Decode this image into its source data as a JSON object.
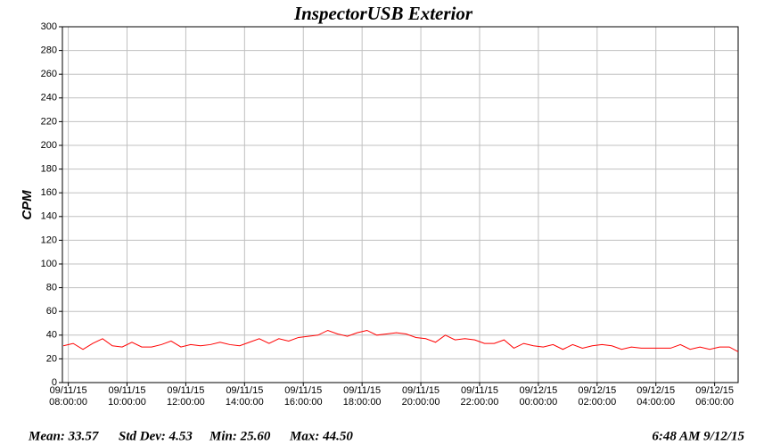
{
  "chart_data": {
    "type": "line",
    "title": "InspectorUSB Exterior",
    "y_label": "CPM",
    "x": [
      "2015-09-11T07:50",
      "2015-09-11T08:10",
      "2015-09-11T08:30",
      "2015-09-11T08:50",
      "2015-09-11T09:10",
      "2015-09-11T09:30",
      "2015-09-11T09:50",
      "2015-09-11T10:10",
      "2015-09-11T10:30",
      "2015-09-11T10:50",
      "2015-09-11T11:10",
      "2015-09-11T11:30",
      "2015-09-11T11:50",
      "2015-09-11T12:10",
      "2015-09-11T12:30",
      "2015-09-11T12:50",
      "2015-09-11T13:10",
      "2015-09-11T13:30",
      "2015-09-11T13:50",
      "2015-09-11T14:10",
      "2015-09-11T14:30",
      "2015-09-11T14:50",
      "2015-09-11T15:10",
      "2015-09-11T15:30",
      "2015-09-11T15:50",
      "2015-09-11T16:10",
      "2015-09-11T16:30",
      "2015-09-11T16:50",
      "2015-09-11T17:10",
      "2015-09-11T17:30",
      "2015-09-11T17:50",
      "2015-09-11T18:10",
      "2015-09-11T18:30",
      "2015-09-11T18:50",
      "2015-09-11T19:10",
      "2015-09-11T19:30",
      "2015-09-11T19:50",
      "2015-09-11T20:10",
      "2015-09-11T20:30",
      "2015-09-11T20:50",
      "2015-09-11T21:10",
      "2015-09-11T21:30",
      "2015-09-11T21:50",
      "2015-09-11T22:10",
      "2015-09-11T22:30",
      "2015-09-11T22:50",
      "2015-09-11T23:10",
      "2015-09-11T23:30",
      "2015-09-11T23:50",
      "2015-09-12T00:10",
      "2015-09-12T00:30",
      "2015-09-12T00:50",
      "2015-09-12T01:10",
      "2015-09-12T01:30",
      "2015-09-12T01:50",
      "2015-09-12T02:10",
      "2015-09-12T02:30",
      "2015-09-12T02:50",
      "2015-09-12T03:10",
      "2015-09-12T03:30",
      "2015-09-12T03:50",
      "2015-09-12T04:10",
      "2015-09-12T04:30",
      "2015-09-12T04:50",
      "2015-09-12T05:10",
      "2015-09-12T05:30",
      "2015-09-12T05:50",
      "2015-09-12T06:10",
      "2015-09-12T06:30",
      "2015-09-12T06:48"
    ],
    "values": [
      31,
      33,
      28,
      33,
      37,
      31,
      30,
      34,
      30,
      30,
      32,
      35,
      30,
      32,
      31,
      32,
      34,
      32,
      31,
      34,
      37,
      33,
      37,
      35,
      38,
      39,
      40,
      44,
      41,
      39,
      42,
      44,
      40,
      41,
      42,
      41,
      38,
      37,
      34,
      40,
      36,
      37,
      36,
      33,
      33,
      36,
      29,
      33,
      31,
      30,
      32,
      28,
      32,
      29,
      31,
      32,
      31,
      28,
      30,
      29,
      29,
      29,
      29,
      32,
      28,
      30,
      28,
      30,
      30,
      26
    ],
    "color": "#ff0000",
    "xlim": [
      "2015-09-11T07:48",
      "2015-09-12T06:48"
    ],
    "xticks": [
      {
        "value": "2015-09-11T08:00",
        "label": "09/11/15\n08:00:00"
      },
      {
        "value": "2015-09-11T10:00",
        "label": "09/11/15\n10:00:00"
      },
      {
        "value": "2015-09-11T12:00",
        "label": "09/11/15\n12:00:00"
      },
      {
        "value": "2015-09-11T14:00",
        "label": "09/11/15\n14:00:00"
      },
      {
        "value": "2015-09-11T16:00",
        "label": "09/11/15\n16:00:00"
      },
      {
        "value": "2015-09-11T18:00",
        "label": "09/11/15\n18:00:00"
      },
      {
        "value": "2015-09-11T20:00",
        "label": "09/11/15\n20:00:00"
      },
      {
        "value": "2015-09-11T22:00",
        "label": "09/11/15\n22:00:00"
      },
      {
        "value": "2015-09-12T00:00",
        "label": "09/12/15\n00:00:00"
      },
      {
        "value": "2015-09-12T02:00",
        "label": "09/12/15\n02:00:00"
      },
      {
        "value": "2015-09-12T04:00",
        "label": "09/12/15\n04:00:00"
      },
      {
        "value": "2015-09-12T06:00",
        "label": "09/12/15\n06:00:00"
      }
    ],
    "ylim": [
      0,
      300
    ],
    "yticks": [
      0,
      20,
      40,
      60,
      80,
      100,
      120,
      140,
      160,
      180,
      200,
      220,
      240,
      260,
      280,
      300
    ],
    "grid": true
  },
  "footer": {
    "mean": "Mean: 33.57",
    "std_dev": "Std Dev: 4.53",
    "min": "Min: 25.60",
    "max": "Max: 44.50",
    "timestamp": "6:48 AM  9/12/15"
  }
}
